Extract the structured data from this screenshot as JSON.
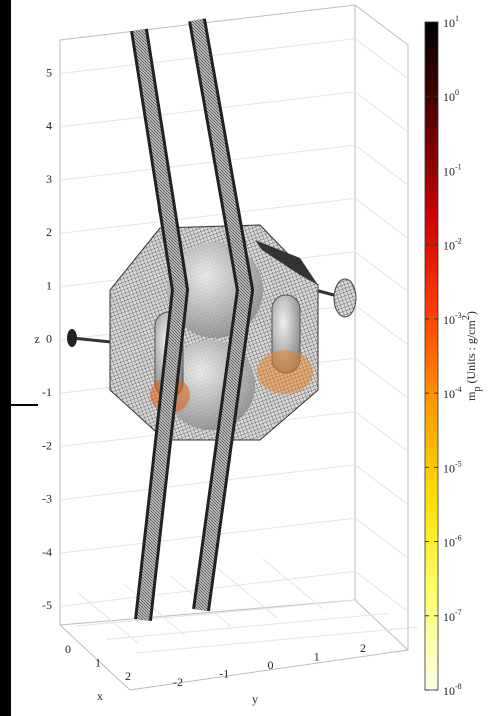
{
  "chart_data": {
    "type": "mesh3d",
    "zlabel": "z",
    "xlabel": "x",
    "ylabel": "y",
    "zlim": [
      -5.5,
      6.1
    ],
    "zticks": [
      -5,
      -4,
      -3,
      -2,
      -1,
      0,
      1,
      2,
      3,
      4,
      5
    ],
    "xlim": [
      0,
      2
    ],
    "xticks": [
      0,
      1,
      2
    ],
    "ylim": [
      -2,
      2
    ],
    "yticks": [
      -2,
      -1,
      0,
      1,
      2
    ],
    "grid": true,
    "colorbar": {
      "scale": "log",
      "lim": [
        1e-08,
        10
      ],
      "ticks": [
        {
          "value": 10,
          "label": "10",
          "exponent": "1"
        },
        {
          "value": 1,
          "label": "10",
          "exponent": "0"
        },
        {
          "value": 0.1,
          "label": "10",
          "exponent": "-1"
        },
        {
          "value": 0.01,
          "label": "10",
          "exponent": "-2"
        },
        {
          "value": 0.001,
          "label": "10",
          "exponent": "-3"
        },
        {
          "value": 0.0001,
          "label": "10",
          "exponent": "-4"
        },
        {
          "value": 1e-05,
          "label": "10",
          "exponent": "-5"
        },
        {
          "value": 1e-06,
          "label": "10",
          "exponent": "-6"
        },
        {
          "value": 1e-07,
          "label": "10",
          "exponent": "-7"
        },
        {
          "value": 1e-08,
          "label": "10",
          "exponent": "-8"
        }
      ],
      "colormap": [
        "#000000",
        "#5a0000",
        "#c80000",
        "#ff3a00",
        "#ff9a00",
        "#ffe000",
        "#ffff70",
        "#ffffe8"
      ],
      "label": [
        "m",
        "p",
        " (Units : g/cm",
        "2",
        ")"
      ]
    }
  }
}
